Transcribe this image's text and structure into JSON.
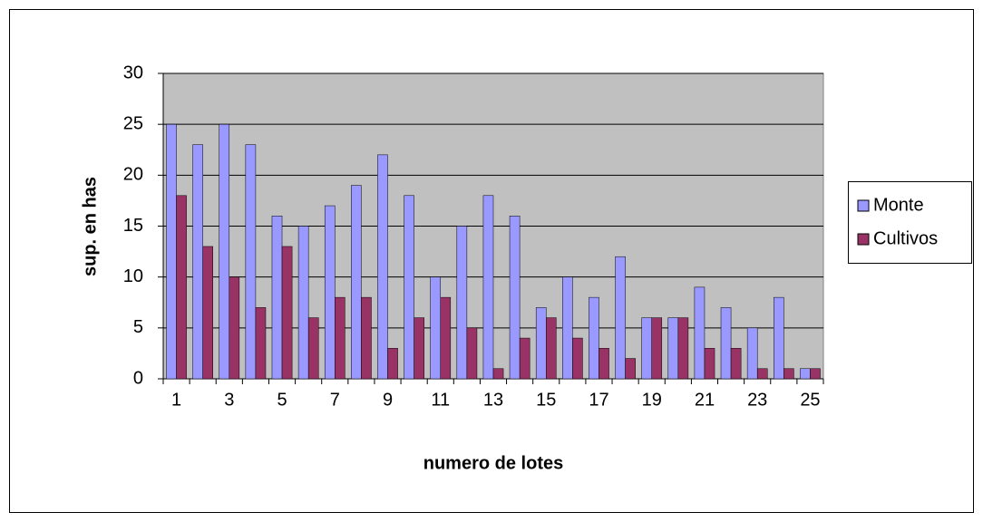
{
  "chart_data": {
    "type": "bar",
    "x_label": "numero de lotes",
    "y_label": "sup. en has",
    "categories": [
      "1",
      null,
      "3",
      null,
      "5",
      null,
      "7",
      null,
      "9",
      null,
      "11",
      null,
      "13",
      null,
      "15",
      null,
      "17",
      null,
      "19",
      null,
      "21",
      null,
      "23",
      null,
      "25"
    ],
    "series": [
      {
        "name": "Monte",
        "color": "#9999ff",
        "values": [
          25,
          23,
          25,
          23,
          16,
          15,
          17,
          19,
          22,
          18,
          10,
          15,
          18,
          16,
          7,
          10,
          8,
          12,
          6,
          6,
          9,
          7,
          5,
          8,
          1
        ]
      },
      {
        "name": "Cultivos",
        "color": "#993366",
        "values": [
          18,
          13,
          10,
          7,
          13,
          6,
          8,
          8,
          3,
          6,
          8,
          5,
          1,
          4,
          6,
          4,
          3,
          2,
          6,
          6,
          3,
          3,
          1,
          1,
          1
        ]
      }
    ],
    "ylim": [
      0,
      30
    ],
    "yticks": [
      0,
      5,
      10,
      15,
      20,
      25,
      30
    ],
    "grid": true,
    "legend": "right"
  }
}
